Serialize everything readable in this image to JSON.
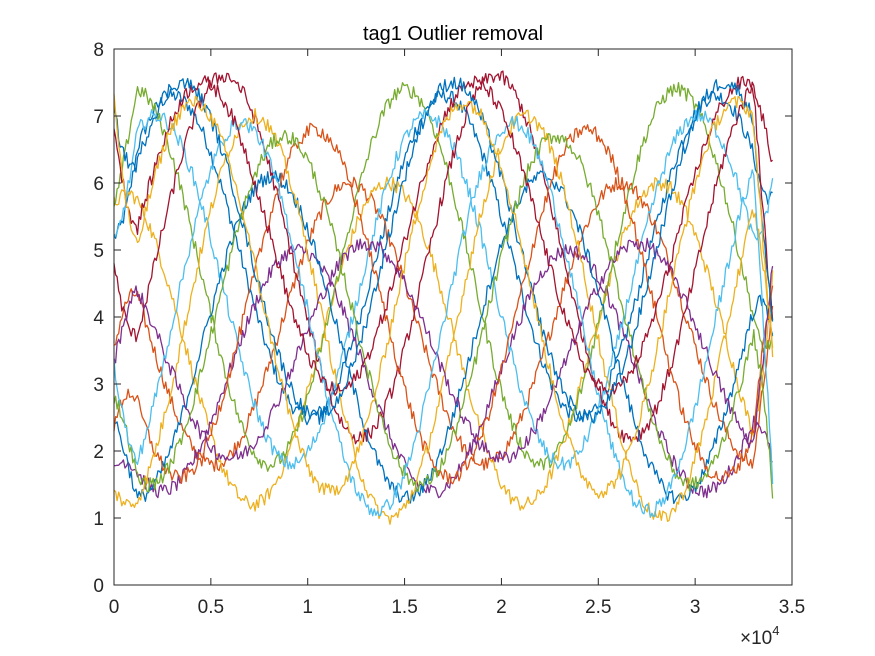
{
  "chart_data": {
    "type": "line",
    "title": "tag1 Outlier removal",
    "xlabel": "",
    "ylabel": "",
    "xlim": [
      0,
      35000
    ],
    "ylim": [
      0,
      8
    ],
    "x_ticks": [
      0,
      5000,
      10000,
      15000,
      20000,
      25000,
      30000,
      35000
    ],
    "x_tick_labels": [
      "0",
      "0.5",
      "1",
      "1.5",
      "2",
      "2.5",
      "3",
      "3.5"
    ],
    "x_exponent_label": "×10",
    "x_exponent_power": "4",
    "y_ticks": [
      0,
      1,
      2,
      3,
      4,
      5,
      6,
      7,
      8
    ],
    "y_tick_labels": [
      "0",
      "1",
      "2",
      "3",
      "4",
      "5",
      "6",
      "7",
      "8"
    ],
    "grid": false,
    "box": true,
    "x_end": 34000,
    "approx_period": 14000,
    "series": [
      {
        "color": "#0072BD",
        "start": 5.2,
        "end": 5.8,
        "mean": 4.9,
        "amplitude": 2.4,
        "phase": 0.2
      },
      {
        "color": "#D95319",
        "start": 3.5,
        "end": 4.1,
        "mean": 3.9,
        "amplitude": 2.1,
        "phase": 2.4
      },
      {
        "color": "#EDB120",
        "start": 5.7,
        "end": 4.6,
        "mean": 3.6,
        "amplitude": 2.4,
        "phase": 1.5
      },
      {
        "color": "#7E2F8E",
        "start": 1.7,
        "end": 1.8,
        "mean": 3.2,
        "amplitude": 1.8,
        "phase": 3.6
      },
      {
        "color": "#77AC30",
        "start": 5.6,
        "end": 3.7,
        "mean": 4.6,
        "amplitude": 2.8,
        "phase": 1.1
      },
      {
        "color": "#4DBEEE",
        "start": 5.1,
        "end": 6.1,
        "mean": 4.4,
        "amplitude": 2.6,
        "phase": 0.6
      },
      {
        "color": "#A2142F",
        "start": 4.8,
        "end": 6.3,
        "mean": 4.9,
        "amplitude": 2.7,
        "phase": 5.3
      },
      {
        "color": "#0072BD",
        "start": 2.5,
        "end": 3.8,
        "mean": 3.7,
        "amplitude": 2.4,
        "phase": 4.2
      },
      {
        "color": "#D95319",
        "start": 2.3,
        "end": 4.4,
        "mean": 4.2,
        "amplitude": 2.6,
        "phase": 3.2
      },
      {
        "color": "#EDB120",
        "start": 1.4,
        "end": 3.5,
        "mean": 4.0,
        "amplitude": 3.0,
        "phase": 4.6
      },
      {
        "color": "#7E2F8E",
        "start": 3.3,
        "end": 4.8,
        "mean": 3.5,
        "amplitude": 1.6,
        "phase": 2.0
      },
      {
        "color": "#77AC30",
        "start": 2.8,
        "end": 1.4,
        "mean": 4.1,
        "amplitude": 2.6,
        "phase": 3.9
      },
      {
        "color": "#4DBEEE",
        "start": 3.3,
        "end": 1.5,
        "mean": 4.0,
        "amplitude": 2.9,
        "phase": 4.9
      },
      {
        "color": "#A2142F",
        "start": 6.9,
        "end": 3.9,
        "mean": 5.2,
        "amplitude": 2.3,
        "phase": 5.8
      },
      {
        "color": "#0072BD",
        "start": 7.1,
        "end": 4.0,
        "mean": 5.0,
        "amplitude": 2.5,
        "phase": 0.0
      },
      {
        "color": "#EDB120",
        "start": 7.3,
        "end": 3.6,
        "mean": 4.3,
        "amplitude": 2.9,
        "phase": 6.0
      }
    ]
  }
}
